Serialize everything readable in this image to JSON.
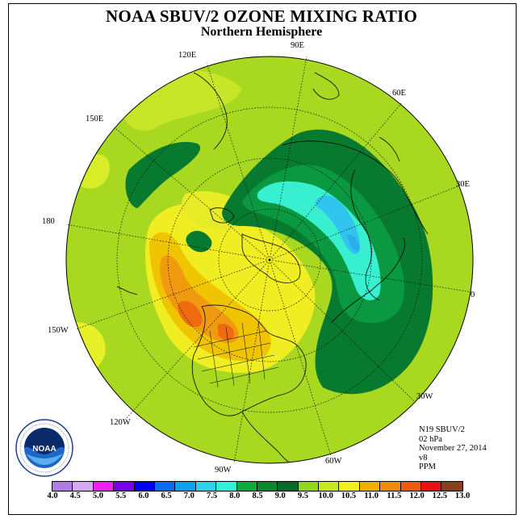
{
  "title": "NOAA SBUV/2 OZONE MIXING RATIO",
  "subtitle": "Northern Hemisphere",
  "longitude_labels": {
    "e90": "90E",
    "e60": "60E",
    "e30": "30E",
    "zero": "0",
    "w30": "30W",
    "w60": "60W",
    "w90": "90W",
    "w120": "120W",
    "w150": "150W",
    "l180": "180",
    "e150": "150E",
    "e120": "120E"
  },
  "info": {
    "satellite": "N19 SBUV/2",
    "level": "02 hPa",
    "date": "November 27, 2014",
    "version": "v8",
    "units": "PPM"
  },
  "logo": {
    "text": "NOAA",
    "ring_text": "NATIONAL OCEANIC AND ATMOSPHERIC ADMINISTRATION · U.S. DEPARTMENT OF COMMERCE"
  },
  "colorbar": {
    "ticks": [
      "4.0",
      "4.5",
      "5.0",
      "5.5",
      "6.0",
      "6.5",
      "7.0",
      "7.5",
      "8.0",
      "8.5",
      "9.0",
      "9.5",
      "10.0",
      "10.5",
      "11.0",
      "11.5",
      "12.0",
      "12.5",
      "13.0"
    ],
    "colors": [
      "#b07ae8",
      "#d6a8f2",
      "#ee22ee",
      "#7a00e8",
      "#0000ee",
      "#0a6cf0",
      "#10a0f0",
      "#30cfee",
      "#30f0d8",
      "#10a840",
      "#0a8830",
      "#076a2a",
      "#90d820",
      "#c6e820",
      "#f0f020",
      "#f0b000",
      "#f08a10",
      "#f05a10",
      "#e81010",
      "#8a4020"
    ]
  }
}
